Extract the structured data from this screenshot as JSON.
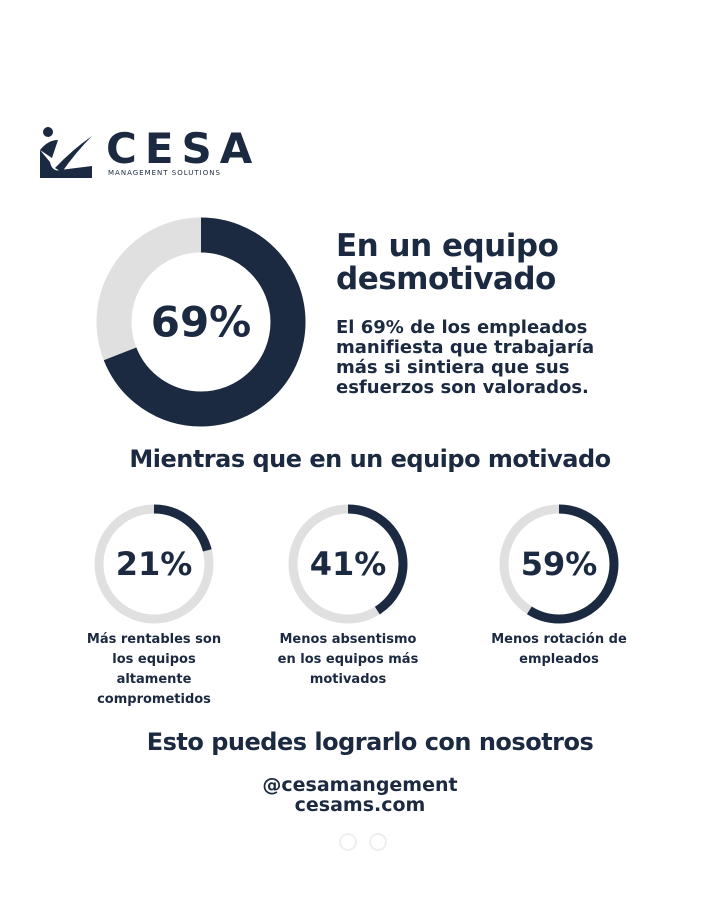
{
  "logo": {
    "name": "CESA",
    "tagline": "MANAGEMENT SOLUTIONS"
  },
  "main_stat": {
    "value": 69,
    "label": "69%",
    "title": "En un equipo desmotivado",
    "text": "El 69% de los empleados manifiesta que trabajaría más si sintiera que sus esfuerzos son valorados."
  },
  "subtitle": "Mientras que en un equipo motivado",
  "stats": [
    {
      "value": 21,
      "label": "21%",
      "text": "Más rentables son los equipos altamente comprometidos"
    },
    {
      "value": 41,
      "label": "41%",
      "text": "Menos absentismo en los equipos más motivados"
    },
    {
      "value": 59,
      "label": "59%",
      "text": "Menos rotación de empleados"
    }
  ],
  "cta": "Esto puedes lograrlo con nosotros",
  "handle": "@cesamangement",
  "website": "cesams.com"
}
